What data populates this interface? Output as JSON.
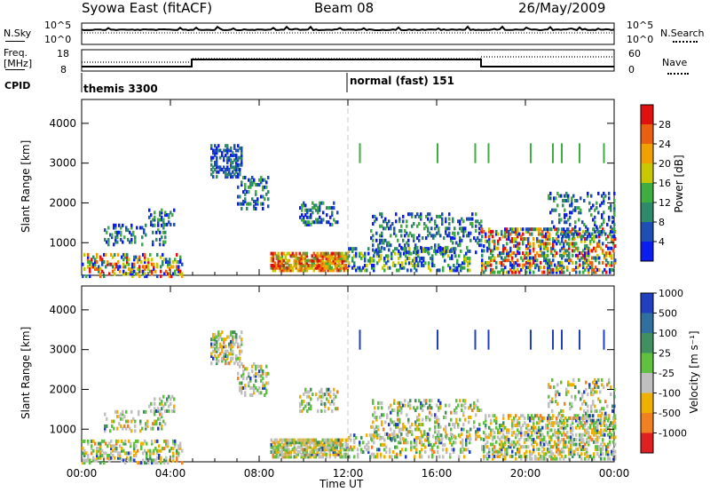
{
  "header": {
    "title": "Syowa East (fitACF)",
    "beam": "Beam 08",
    "date": "26/May/2009"
  },
  "top_panels": {
    "nsky_label": "N.Sky",
    "nsearch_label": "N.Search",
    "noise_ticks": [
      "10^5",
      "10^0"
    ],
    "freq_label_1": "Freq.",
    "freq_label_2": "[MHz]",
    "freq_ticks": [
      "18",
      "8"
    ],
    "nave_label": "Nave",
    "nave_ticks": [
      "60",
      "0"
    ],
    "cpid_label": "CPID",
    "cpid_segments": [
      {
        "label": "themis 3300",
        "start_hour": 0
      },
      {
        "label": "normal (fast) 151",
        "start_hour": 12
      }
    ]
  },
  "chart_data": [
    {
      "type": "heatmap",
      "name": "power",
      "ylabel": "Slant Range [km]",
      "xlabel": "",
      "xlim_hours": [
        0,
        24
      ],
      "ylim": [
        180,
        4600
      ],
      "yticks": [
        1000,
        2000,
        3000,
        4000
      ],
      "colorbar_label": "Power [dB]",
      "colorbar_ticks": [
        "4",
        "8",
        "12",
        "16",
        "20",
        "24",
        "28"
      ],
      "colors": [
        "#0a1ef0",
        "#1e4fb4",
        "#2e8a6a",
        "#3fae40",
        "#c8c800",
        "#f0a000",
        "#e86010",
        "#e01010"
      ]
    },
    {
      "type": "heatmap",
      "name": "velocity",
      "ylabel": "Slant Range [km]",
      "xlabel": "Time UT",
      "xlim_hours": [
        0,
        24
      ],
      "ylim": [
        180,
        4600
      ],
      "yticks": [
        1000,
        2000,
        3000,
        4000
      ],
      "xticks": [
        "00:00",
        "04:00",
        "08:00",
        "12:00",
        "16:00",
        "20:00",
        "00:00"
      ],
      "colorbar_label": "Velocity [m s⁻¹]",
      "colorbar_ticks": [
        "1000",
        "500",
        "100",
        "25",
        "-25",
        "-100",
        "-500",
        "-1000"
      ],
      "colors": [
        "#2040c0",
        "#3070a0",
        "#409060",
        "#60c040",
        "#c0c0c0",
        "#f0b000",
        "#f08020",
        "#e02020"
      ]
    }
  ]
}
